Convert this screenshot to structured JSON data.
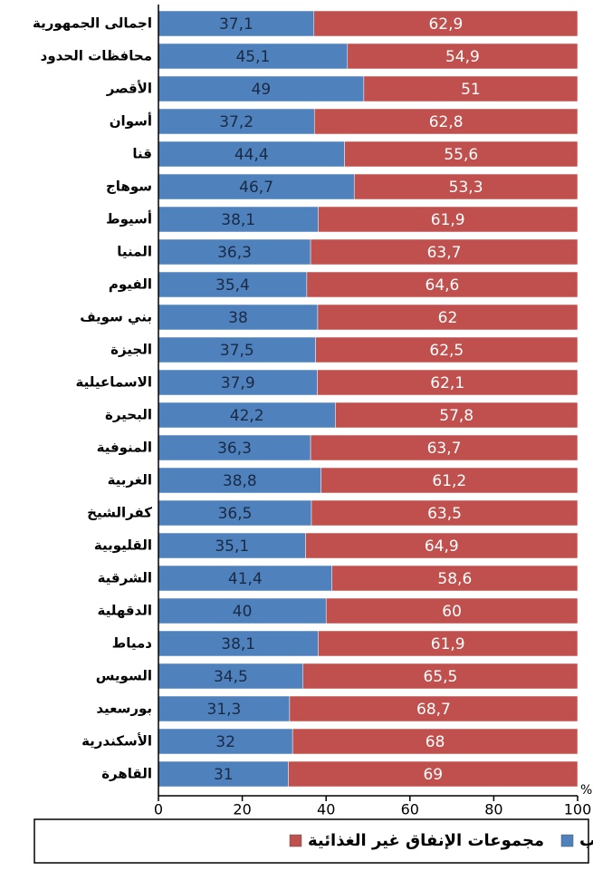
{
  "chart_data": {
    "type": "stacked_barh",
    "categories": [
      "اجمالى الجمهورية",
      "محافظات الحدود",
      "الأقصر",
      "أسوان",
      "قنا",
      "سوهاج",
      "أسيوط",
      "المنيا",
      "الفيوم",
      "بني سويف",
      "الجيزة",
      "الاسماعيلية",
      "البحيرة",
      "المنوفية",
      "الغربية",
      "كفرالشيخ",
      "القليوبية",
      "الشرقية",
      "الدقهلية",
      "دمياط",
      "السويس",
      "بورسعيد",
      "الأسكندرية",
      "القاهرة"
    ],
    "series": [
      {
        "name": "الطعام والشراب",
        "color": "#4f81bd",
        "values": [
          37.1,
          45.1,
          49,
          37.2,
          44.4,
          46.7,
          38.1,
          36.3,
          35.4,
          38,
          37.5,
          37.9,
          42.2,
          36.3,
          38.8,
          36.5,
          35.1,
          41.4,
          40,
          38.1,
          34.5,
          31.3,
          32,
          31
        ],
        "value_labels": [
          "37,1",
          "45,1",
          "49",
          "37,2",
          "44,4",
          "46,7",
          "38,1",
          "36,3",
          "35,4",
          "38",
          "37,5",
          "37,9",
          "42,2",
          "36,3",
          "38,8",
          "36,5",
          "35,1",
          "41,4",
          "40",
          "38,1",
          "34,5",
          "31,3",
          "32",
          "31"
        ]
      },
      {
        "name": "مجموعات الإنفاق غير الغذائية",
        "color": "#c0504d",
        "values": [
          62.9,
          54.9,
          51,
          62.8,
          55.6,
          53.3,
          61.9,
          63.7,
          64.6,
          62,
          62.5,
          62.1,
          57.8,
          63.7,
          61.2,
          63.5,
          64.9,
          58.6,
          60,
          61.9,
          65.5,
          68.7,
          68,
          69
        ],
        "value_labels": [
          "62,9",
          "54,9",
          "51",
          "62,8",
          "55,6",
          "53,3",
          "61,9",
          "63,7",
          "64,6",
          "62",
          "62,5",
          "62,1",
          "57,8",
          "63,7",
          "61,2",
          "63,5",
          "64,9",
          "58,6",
          "60",
          "61,9",
          "65,5",
          "68,7",
          "68",
          "69"
        ]
      }
    ],
    "xlabel": "%",
    "xlim": [
      0,
      100
    ],
    "xticks": [
      0,
      20,
      40,
      60,
      80,
      100
    ]
  }
}
